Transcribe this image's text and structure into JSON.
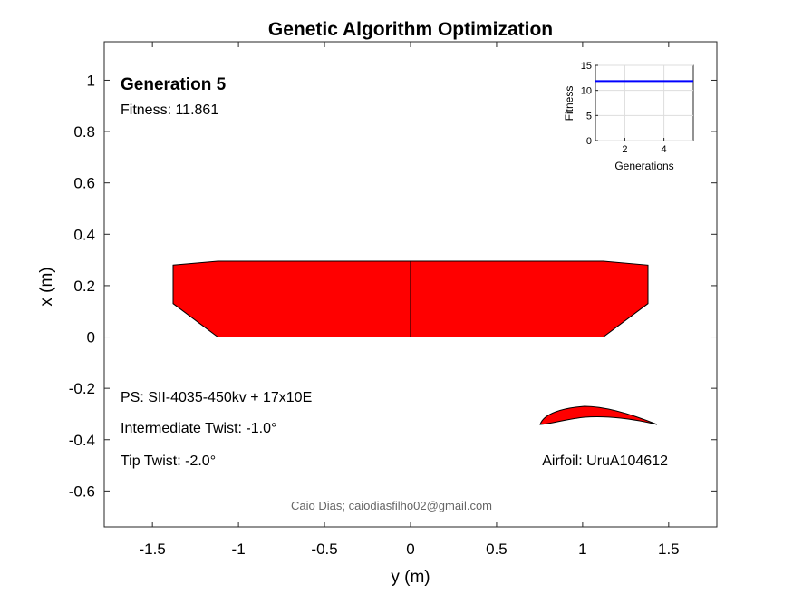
{
  "chart_data": {
    "type": "area",
    "title": "Genetic Algorithm Optimization",
    "xlabel": "y (m)",
    "ylabel": "x (m)",
    "xlim": [
      -1.78,
      1.78
    ],
    "ylim": [
      -0.74,
      1.15
    ],
    "xticks": [
      -1.5,
      -1,
      -0.5,
      0,
      0.5,
      1,
      1.5
    ],
    "xtick_labels": [
      "-1.5",
      "-1",
      "-0.5",
      "0",
      "0.5",
      "1",
      "1.5"
    ],
    "yticks": [
      1,
      0.8,
      0.6,
      0.4,
      0.2,
      0,
      -0.2,
      -0.4,
      -0.6
    ],
    "ytick_labels": [
      "1",
      "0.8",
      "0.6",
      "0.4",
      "0.2",
      "0",
      "-0.2",
      "-0.4",
      "-0.6"
    ],
    "grid": false,
    "fill_color": "#ff0000",
    "outline_color": "#000000",
    "wing_planform": [
      [
        -1.38,
        0.28
      ],
      [
        -1.12,
        0.295
      ],
      [
        1.12,
        0.295
      ],
      [
        1.38,
        0.28
      ],
      [
        1.38,
        0.13
      ],
      [
        1.12,
        0.0
      ],
      [
        -1.12,
        0.0
      ],
      [
        -1.38,
        0.13
      ]
    ],
    "root_chord_line": [
      [
        0,
        0
      ],
      [
        0,
        0.295
      ]
    ],
    "airfoil_label": "Airfoil: UruA104612",
    "generation_label": "Generation 5",
    "fitness_label": "Fitness: 11.861",
    "ps_label": "PS: SII-4035-450kv + 17x10E",
    "intermediate_twist_label": "Intermediate Twist: -1.0°",
    "tip_twist_label": "Tip Twist: -2.0°",
    "credit": "Caio Dias; caiodiasfilho02@gmail.com",
    "inset": {
      "type": "line",
      "xlabel": "Generations",
      "ylabel": "Fitness",
      "xlim": [
        0.5,
        5.5
      ],
      "ylim": [
        0,
        15
      ],
      "xticks": [
        2,
        4
      ],
      "xtick_labels": [
        "2",
        "4"
      ],
      "yticks": [
        0,
        5,
        10,
        15
      ],
      "ytick_labels": [
        "0",
        "5",
        "10",
        "15"
      ],
      "grid": true,
      "line_color": "#0000ff",
      "x": [
        1,
        2,
        3,
        4,
        5
      ],
      "y": [
        11.861,
        11.861,
        11.861,
        11.861,
        11.861
      ]
    }
  }
}
